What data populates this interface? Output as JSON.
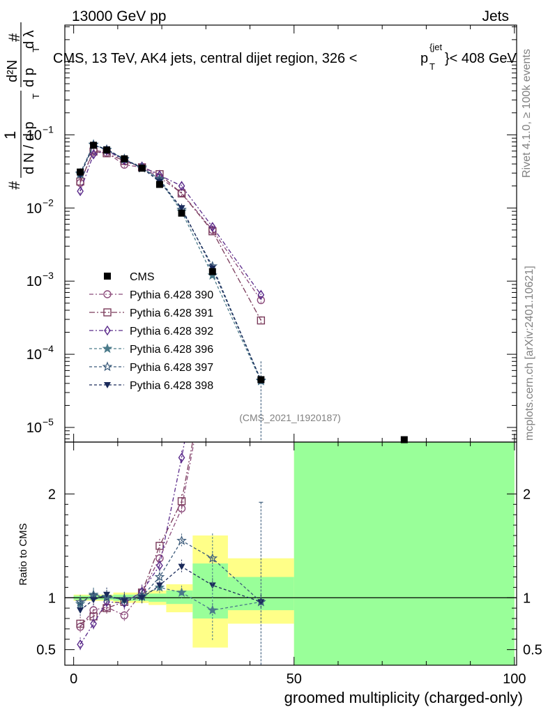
{
  "header": {
    "left": "13000 GeV pp",
    "right": "Jets"
  },
  "chart_data": {
    "type": "scatter",
    "title": "CMS, 13 TeV, AK4 jets, central dijet region, 326 <",
    "title_pt": "p",
    "title_sup": "{jet",
    "title_sub": "T",
    "title_tail": "}< 408 GeV",
    "analysis_id": "(CMS_2021_I1920187)",
    "side_labels": {
      "rivet": "Rivet 4.1.0, ≥ 100k events",
      "mcplots": "mcplots.cern.ch [arXiv:2401.10621]"
    },
    "ylabel_main": {
      "hash1": "#",
      "one": "1",
      "dN": "d N / d p",
      "T": "T",
      "hash2": "#",
      "d2N": "d²N",
      "dpT": "d p",
      "dlam": "d λ"
    },
    "ylabel_ratio": "Ratio to CMS",
    "xlabel": "groomed multiplicity (charged-only)",
    "xlim": [
      -2,
      100.5
    ],
    "main_ylim_log10": [
      -5.2,
      0.5
    ],
    "ratio_ylim": [
      0.35,
      2.5
    ],
    "x_ticks": [
      "0",
      "50",
      "100"
    ],
    "y_ticks_main": [
      "10^-5",
      "10^-4",
      "10^-3",
      "10^-2",
      "10^-1"
    ],
    "y_ticks_ratio": [
      "0.5",
      "1",
      "2"
    ],
    "data": {
      "name": "CMS",
      "x": [
        1.5,
        4.5,
        7.5,
        11.5,
        15.5,
        19.5,
        24.5,
        31.5,
        42.5,
        75
      ],
      "y": [
        0.031,
        0.072,
        0.062,
        0.047,
        0.035,
        0.021,
        0.0085,
        0.00135,
        4.5e-05,
        6.8e-06
      ],
      "uncertainty_band": [
        {
          "x": [
            0,
            3
          ],
          "lo": 0.97,
          "hi": 1.03
        },
        {
          "x": [
            3,
            6
          ],
          "lo": 0.97,
          "hi": 1.03
        },
        {
          "x": [
            6,
            9
          ],
          "lo": 0.97,
          "hi": 1.03
        },
        {
          "x": [
            9,
            14
          ],
          "lo": 0.95,
          "hi": 1.05
        },
        {
          "x": [
            14,
            17
          ],
          "lo": 0.95,
          "hi": 1.05
        },
        {
          "x": [
            17,
            21
          ],
          "lo": 0.93,
          "hi": 1.07
        },
        {
          "x": [
            21,
            27
          ],
          "lo": 0.86,
          "hi": 1.13
        },
        {
          "x": [
            27,
            35
          ],
          "lo": 0.52,
          "hi": 1.6
        },
        {
          "x": [
            35,
            50
          ],
          "lo": 0.75,
          "hi": 1.38
        },
        {
          "x": [
            50,
            100
          ],
          "lo": 0.2,
          "hi": 2.6
        }
      ],
      "stat_band": [
        {
          "x": [
            0,
            3
          ],
          "lo": 0.98,
          "hi": 1.02
        },
        {
          "x": [
            3,
            6
          ],
          "lo": 0.98,
          "hi": 1.02
        },
        {
          "x": [
            6,
            9
          ],
          "lo": 0.98,
          "hi": 1.02
        },
        {
          "x": [
            9,
            14
          ],
          "lo": 0.97,
          "hi": 1.03
        },
        {
          "x": [
            14,
            17
          ],
          "lo": 0.97,
          "hi": 1.03
        },
        {
          "x": [
            17,
            21
          ],
          "lo": 0.96,
          "hi": 1.04
        },
        {
          "x": [
            21,
            27
          ],
          "lo": 0.94,
          "hi": 1.07
        },
        {
          "x": [
            27,
            35
          ],
          "lo": 0.8,
          "hi": 1.33
        },
        {
          "x": [
            35,
            50
          ],
          "lo": 0.88,
          "hi": 1.2
        },
        {
          "x": [
            50,
            100
          ],
          "lo": 0.2,
          "hi": 2.6
        }
      ]
    },
    "series": [
      {
        "name": "Pythia 6.428 390",
        "color": "#8b4a7a",
        "marker": "circle-open",
        "dash": "6,3,2,3",
        "x": [
          1.5,
          4.5,
          7.5,
          11.5,
          15.5,
          19.5,
          24.5,
          31.5,
          42.5
        ],
        "y": [
          0.022,
          0.062,
          0.057,
          0.039,
          0.036,
          0.026,
          0.016,
          0.005,
          0.00055
        ],
        "ratio": [
          0.72,
          0.88,
          0.91,
          0.83,
          1.05,
          1.38,
          1.86
        ]
      },
      {
        "name": "Pythia 6.428 391",
        "color": "#7a3a5a",
        "marker": "square-open",
        "dash": "8,3,2,3",
        "x": [
          1.5,
          4.5,
          7.5,
          11.5,
          15.5,
          19.5,
          24.5,
          31.5,
          42.5
        ],
        "y": [
          0.023,
          0.059,
          0.056,
          0.044,
          0.036,
          0.029,
          0.0158,
          0.0048,
          0.00029
        ],
        "ratio": [
          0.75,
          0.82,
          0.9,
          0.96,
          1.05,
          1.5,
          1.93
        ]
      },
      {
        "name": "Pythia 6.428 392",
        "color": "#5a2a8a",
        "marker": "diamond-open",
        "dash": "6,3,2,3",
        "x": [
          1.5,
          4.5,
          7.5,
          11.5,
          15.5,
          19.5,
          24.5,
          31.5,
          42.5
        ],
        "y": [
          0.017,
          0.054,
          0.061,
          0.045,
          0.037,
          0.028,
          0.02,
          0.0055,
          0.00065
        ],
        "ratio": [
          0.55,
          0.75,
          0.96,
          0.95,
          1.06,
          1.31,
          2.35
        ]
      },
      {
        "name": "Pythia 6.428 396",
        "color": "#4a7a8a",
        "marker": "star-filled",
        "dash": "4,3",
        "x": [
          1.5,
          4.5,
          7.5,
          11.5,
          15.5,
          19.5,
          24.5,
          31.5,
          42.5
        ],
        "y": [
          0.029,
          0.074,
          0.063,
          0.046,
          0.036,
          0.024,
          0.009,
          0.0012,
          4.3e-05
        ],
        "ratio": [
          0.94,
          1.03,
          1.01,
          0.98,
          1.02,
          1.1,
          1.05,
          0.88,
          0.96
        ]
      },
      {
        "name": "Pythia 6.428 397",
        "color": "#3a5a7a",
        "marker": "star-open",
        "dash": "4,3",
        "x": [
          1.5,
          4.5,
          7.5,
          11.5,
          15.5,
          19.5,
          24.5,
          31.5,
          42.5
        ],
        "y": [
          0.03,
          0.073,
          0.062,
          0.047,
          0.035,
          0.025,
          0.0095,
          0.0016,
          4.4e-05
        ],
        "ratio": [
          0.96,
          1.02,
          1.0,
          0.99,
          1.01,
          1.2,
          1.55,
          1.38,
          0.96
        ]
      },
      {
        "name": "Pythia 6.428 398",
        "color": "#1a2a5a",
        "marker": "triangle-down",
        "dash": "4,3",
        "x": [
          1.5,
          4.5,
          7.5,
          11.5,
          15.5,
          19.5,
          24.5,
          31.5,
          42.5
        ],
        "y": [
          0.028,
          0.071,
          0.064,
          0.046,
          0.035,
          0.023,
          0.01,
          0.0015,
          4.4e-05
        ],
        "ratio": [
          0.88,
          0.98,
          1.03,
          0.97,
          1.0,
          1.12,
          1.3,
          1.12,
          0.96
        ]
      }
    ]
  }
}
